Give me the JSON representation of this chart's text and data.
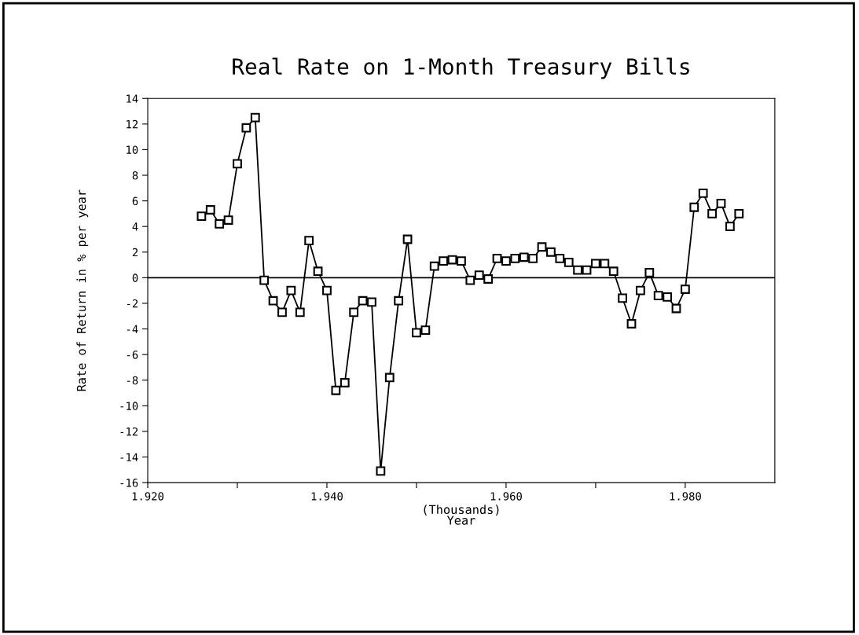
{
  "chart_data": {
    "type": "line",
    "title": "Real Rate on 1-Month Treasury Bills",
    "xlabel": "(Thousands)\nYear",
    "ylabel": "Rate of Return in % per year",
    "x": [
      1926,
      1927,
      1928,
      1929,
      1930,
      1931,
      1932,
      1933,
      1934,
      1935,
      1936,
      1937,
      1938,
      1939,
      1940,
      1941,
      1942,
      1943,
      1944,
      1945,
      1946,
      1947,
      1948,
      1949,
      1950,
      1951,
      1952,
      1953,
      1954,
      1955,
      1956,
      1957,
      1958,
      1959,
      1960,
      1961,
      1962,
      1963,
      1964,
      1965,
      1966,
      1967,
      1968,
      1969,
      1970,
      1971,
      1972,
      1973,
      1974,
      1975,
      1976,
      1977,
      1978,
      1979,
      1980,
      1981,
      1982,
      1983,
      1984,
      1985,
      1986
    ],
    "series": [
      {
        "color": "#000000",
        "values": [
          4.8,
          5.3,
          4.2,
          4.5,
          8.9,
          11.7,
          12.5,
          -0.2,
          -1.8,
          -2.7,
          -1.0,
          -2.7,
          2.9,
          0.5,
          -1.0,
          -8.8,
          -8.2,
          -2.7,
          -1.8,
          -1.9,
          -15.1,
          -7.8,
          -1.8,
          3.0,
          -4.3,
          -4.1,
          0.9,
          1.3,
          1.4,
          1.3,
          -0.2,
          0.2,
          -0.1,
          1.5,
          1.3,
          1.5,
          1.6,
          1.5,
          2.4,
          2.0,
          1.5,
          1.2,
          0.6,
          0.6,
          1.1,
          1.1,
          0.5,
          -1.6,
          -3.6,
          -1.0,
          0.4,
          -1.4,
          -1.5,
          -2.4,
          -0.9,
          5.5,
          6.6,
          5.0,
          5.8,
          4.0,
          5.0
        ]
      }
    ],
    "xlim": [
      1920,
      1990
    ],
    "xticks": [
      {
        "value": 1920,
        "label": "1.920"
      },
      {
        "value": 1930,
        "label": null
      },
      {
        "value": 1940,
        "label": "1.940"
      },
      {
        "value": 1950,
        "label": null
      },
      {
        "value": 1960,
        "label": "1.960"
      },
      {
        "value": 1970,
        "label": null
      },
      {
        "value": 1980,
        "label": "1.980"
      }
    ],
    "ylim": [
      -16,
      14
    ],
    "yticks": [
      -16,
      -14,
      -12,
      -10,
      -8,
      -6,
      -4,
      -2,
      0,
      2,
      4,
      6,
      8,
      10,
      12,
      14
    ],
    "ref_lines": [
      {
        "axis": "y",
        "value": 0,
        "color": "#000000"
      }
    ],
    "marker": "square",
    "line_style": "solid",
    "grid": false
  }
}
